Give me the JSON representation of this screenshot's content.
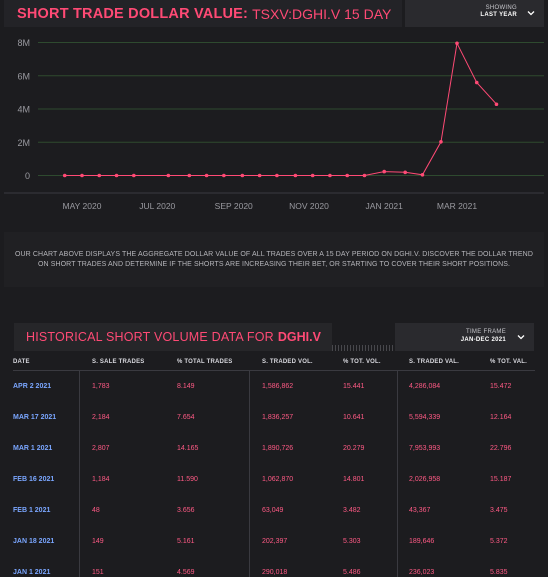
{
  "header": {
    "title_main": "SHORT TRADE DOLLAR VALUE:",
    "title_symbol": "TSXV:DGHI.V 15 DAY",
    "showing_label": "SHOWING",
    "showing_value": "LAST YEAR"
  },
  "colors": {
    "accent": "#ff4a75",
    "date_blue": "#7aa6ff",
    "bg": "#1c1c1f"
  },
  "chart_data": {
    "type": "line",
    "title": "",
    "xlabel": "",
    "ylabel": "",
    "y_ticks": [
      "0",
      "2M",
      "4M",
      "6M",
      "8M"
    ],
    "y_tick_values": [
      0,
      2000000,
      4000000,
      6000000,
      8000000
    ],
    "x_ticks": [
      "MAY 2020",
      "JUL 2020",
      "SEP 2020",
      "NOV 2020",
      "JAN 2021",
      "MAR 2021"
    ],
    "x_tick_dates": [
      "2020-05-01",
      "2020-07-01",
      "2020-09-01",
      "2020-11-01",
      "2021-01-01",
      "2021-03-01"
    ],
    "ylim": [
      0,
      8000000
    ],
    "grid": true,
    "series": [
      {
        "x": [
          "2020-04-17",
          "2020-05-01",
          "2020-05-15",
          "2020-05-29",
          "2020-06-12",
          "2020-07-10",
          "2020-07-27",
          "2020-08-10",
          "2020-08-24",
          "2020-09-08",
          "2020-09-22",
          "2020-10-06",
          "2020-10-21",
          "2020-11-04",
          "2020-11-18",
          "2020-12-02",
          "2020-12-16",
          "2021-01-01",
          "2021-01-18",
          "2021-02-01",
          "2021-02-16",
          "2021-03-01",
          "2021-03-17",
          "2021-04-02"
        ],
        "y": [
          0,
          0,
          0,
          0,
          0,
          0,
          0,
          0,
          0,
          0,
          0,
          0,
          0,
          0,
          0,
          0,
          0,
          236023,
          189646,
          43367,
          2026958,
          7953993,
          5594339,
          4286084
        ]
      }
    ]
  },
  "description": "OUR CHART ABOVE DISPLAYS THE AGGREGATE DOLLAR VALUE OF ALL TRADES OVER A 15 DAY PERIOD ON DGHI.V. DISCOVER THE DOLLAR TREND ON SHORT TRADES AND DETERMINE IF THE SHORTS ARE INCREASING THEIR BET, OR STARTING TO COVER THEIR SHORT POSITIONS.",
  "historical": {
    "title": "HISTORICAL SHORT VOLUME DATA FOR",
    "symbol": "DGHI.V",
    "timeframe_label": "TIME FRAME",
    "timeframe_value": "JAN-DEC 2021"
  },
  "table": {
    "headers": [
      "DATE",
      "S. SALE TRADES",
      "% TOTAL TRADES",
      "S. TRADED VOL.",
      "% TOT. VOL.",
      "S. TRADED VAL.",
      "% TOT. VAL."
    ],
    "rows": [
      [
        "APR 2 2021",
        "1,783",
        "8.149",
        "1,586,862",
        "15.441",
        "4,286,084",
        "15.472"
      ],
      [
        "MAR 17 2021",
        "2,184",
        "7.654",
        "1,836,257",
        "10.641",
        "5,594,339",
        "12.164"
      ],
      [
        "MAR 1 2021",
        "2,807",
        "14.165",
        "1,890,726",
        "20.279",
        "7,953,993",
        "22.796"
      ],
      [
        "FEB 16 2021",
        "1,184",
        "11.590",
        "1,062,870",
        "14.801",
        "2,026,958",
        "15.187"
      ],
      [
        "FEB 1 2021",
        "48",
        "3.656",
        "63,049",
        "3.482",
        "43,367",
        "3.475"
      ],
      [
        "JAN 18 2021",
        "149",
        "5.161",
        "202,397",
        "5.303",
        "189,646",
        "5.372"
      ],
      [
        "JAN 1 2021",
        "151",
        "4.569",
        "290,018",
        "5.486",
        "236,023",
        "5.835"
      ]
    ]
  }
}
